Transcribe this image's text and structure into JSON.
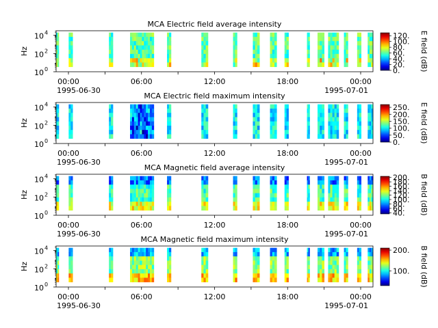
{
  "chart_data": [
    {
      "type": "heatmap",
      "title": "MCA  Electric field average intensity",
      "ylabel": "Hz",
      "cbar_label": "E field (dB)",
      "cbar_ticks": [
        "0.",
        "20.",
        "40.",
        "60.",
        "80.",
        "100.",
        "120."
      ],
      "cbar_range": [
        0,
        130
      ],
      "x_tick_labels": [
        "00:00",
        "06:00",
        "12:00",
        "18:00",
        "00:00"
      ],
      "x_date_labels": [
        "1995-06-30",
        "1995-07-01"
      ],
      "y_tick_labels": [
        "10",
        "10",
        "10"
      ],
      "y_tick_exponents": [
        "0",
        "2",
        "4"
      ],
      "xlim": [
        "1995-06-30 00:00",
        "1995-07-01 00:00"
      ],
      "y_scale": "log",
      "ylim_exponent": [
        0,
        4.5
      ],
      "data_present_hours": [
        [
          -0.1,
          0.2
        ],
        [
          0.95,
          1.25
        ],
        [
          4.0,
          4.3
        ],
        [
          5.6,
          7.4
        ],
        [
          8.4,
          8.7
        ],
        [
          11.0,
          11.5
        ],
        [
          13.4,
          13.7
        ],
        [
          14.9,
          15.4
        ],
        [
          16.2,
          16.7
        ],
        [
          17.3,
          17.6
        ],
        [
          19.0,
          19.2
        ],
        [
          19.8,
          20.3
        ],
        [
          20.6,
          21.4
        ],
        [
          21.8,
          22.1
        ],
        [
          22.8,
          23.1
        ],
        [
          23.6,
          24.0
        ]
      ],
      "typical_level_db": 60
    },
    {
      "type": "heatmap",
      "title": "MCA  Electric field maximum intensity",
      "ylabel": "Hz",
      "cbar_label": "E field (dB)",
      "cbar_ticks": [
        "0.",
        "50.",
        "100.",
        "150.",
        "200.",
        "250."
      ],
      "cbar_range": [
        0,
        270
      ],
      "x_tick_labels": [
        "00:00",
        "06:00",
        "12:00",
        "18:00",
        "00:00"
      ],
      "x_date_labels": [
        "1995-06-30",
        "1995-07-01"
      ],
      "y_tick_labels": [
        "10",
        "10",
        "10"
      ],
      "y_tick_exponents": [
        "0",
        "2",
        "4"
      ],
      "xlim": [
        "1995-06-30 00:00",
        "1995-07-01 00:00"
      ],
      "y_scale": "log",
      "ylim_exponent": [
        0,
        4.5
      ],
      "data_present_hours": [
        [
          -0.1,
          0.2
        ],
        [
          0.95,
          1.25
        ],
        [
          4.0,
          4.3
        ],
        [
          5.6,
          7.4
        ],
        [
          8.4,
          8.7
        ],
        [
          11.0,
          11.5
        ],
        [
          13.4,
          13.7
        ],
        [
          14.9,
          15.4
        ],
        [
          16.2,
          16.7
        ],
        [
          17.3,
          17.6
        ],
        [
          19.0,
          19.2
        ],
        [
          19.8,
          20.3
        ],
        [
          20.6,
          21.4
        ],
        [
          21.8,
          22.1
        ],
        [
          22.8,
          23.1
        ],
        [
          23.6,
          24.0
        ]
      ],
      "typical_level_db": 100
    },
    {
      "type": "heatmap",
      "title": "MCA  Magnetic field average intensity",
      "ylabel": "Hz",
      "cbar_label": "B field (dB)",
      "cbar_ticks": [
        "40.",
        "60.",
        "80.",
        "100.",
        "120.",
        "140.",
        "160.",
        "180.",
        "200."
      ],
      "cbar_range": [
        35,
        205
      ],
      "x_tick_labels": [
        "00:00",
        "06:00",
        "12:00",
        "18:00",
        "00:00"
      ],
      "x_date_labels": [
        "1995-06-30",
        "1995-07-01"
      ],
      "y_tick_labels": [
        "10",
        "10",
        "10"
      ],
      "y_tick_exponents": [
        "0",
        "2",
        "4"
      ],
      "xlim": [
        "1995-06-30 00:00",
        "1995-07-01 00:00"
      ],
      "y_scale": "log",
      "ylim_exponent": [
        0,
        4.5
      ],
      "data_present_hours": [
        [
          -0.1,
          0.2
        ],
        [
          0.95,
          1.25
        ],
        [
          4.0,
          4.3
        ],
        [
          5.6,
          7.4
        ],
        [
          8.4,
          8.7
        ],
        [
          11.0,
          11.5
        ],
        [
          13.4,
          13.7
        ],
        [
          14.9,
          15.4
        ],
        [
          16.2,
          16.7
        ],
        [
          17.3,
          17.6
        ],
        [
          19.0,
          19.2
        ],
        [
          19.8,
          20.3
        ],
        [
          20.6,
          21.4
        ],
        [
          21.8,
          22.1
        ],
        [
          22.8,
          23.1
        ],
        [
          23.6,
          24.0
        ]
      ],
      "typical_level_db": 110
    },
    {
      "type": "heatmap",
      "title": "MCA  Magnetic field maximum intensity",
      "ylabel": "Hz",
      "cbar_label": "B field (dB)",
      "cbar_ticks": [
        "100.",
        "200."
      ],
      "cbar_range": [
        30,
        210
      ],
      "x_tick_labels": [
        "00:00",
        "06:00",
        "12:00",
        "18:00",
        "00:00"
      ],
      "x_date_labels": [
        "1995-06-30",
        "1995-07-01"
      ],
      "y_tick_labels": [
        "10",
        "10",
        "10"
      ],
      "y_tick_exponents": [
        "0",
        "2",
        "4"
      ],
      "xlim": [
        "1995-06-30 00:00",
        "1995-07-01 00:00"
      ],
      "y_scale": "log",
      "ylim_exponent": [
        0,
        4.5
      ],
      "data_present_hours": [
        [
          -0.1,
          0.2
        ],
        [
          0.95,
          1.25
        ],
        [
          4.0,
          4.3
        ],
        [
          5.6,
          7.4
        ],
        [
          8.4,
          8.7
        ],
        [
          11.0,
          11.5
        ],
        [
          13.4,
          13.7
        ],
        [
          14.9,
          15.4
        ],
        [
          16.2,
          16.7
        ],
        [
          17.3,
          17.6
        ],
        [
          19.0,
          19.2
        ],
        [
          19.8,
          20.3
        ],
        [
          20.6,
          21.4
        ],
        [
          21.8,
          22.1
        ],
        [
          22.8,
          23.1
        ],
        [
          23.6,
          24.0
        ]
      ],
      "typical_level_db": 120
    }
  ]
}
